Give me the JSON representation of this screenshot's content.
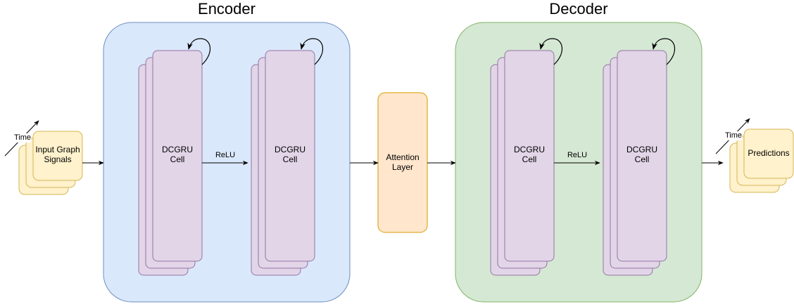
{
  "encoder": {
    "title": "Encoder",
    "cell_label_1": "DCGRU\nCell",
    "cell_label_2": "DCGRU\nCell",
    "activation": "ReLU"
  },
  "decoder": {
    "title": "Decoder",
    "cell_label_1": "DCGRU\nCell",
    "cell_label_2": "DCGRU\nCell",
    "activation": "ReLU"
  },
  "input": {
    "label": "Input Graph\nSignals",
    "time_label": "Time"
  },
  "attention": {
    "label": "Attention\nLayer"
  },
  "output": {
    "label": "Predictions",
    "time_label": "Time"
  },
  "colors": {
    "encoder_fill": "#dae8fc",
    "encoder_stroke": "#6c8ebf",
    "decoder_fill": "#d5e8d4",
    "decoder_stroke": "#82b366",
    "cell_fill": "#e1d5e7",
    "cell_stroke": "#9673a6",
    "io_fill": "#fff2cc",
    "io_stroke": "#d6b656",
    "attention_fill": "#ffe6cc",
    "attention_stroke": "#d79b00"
  }
}
